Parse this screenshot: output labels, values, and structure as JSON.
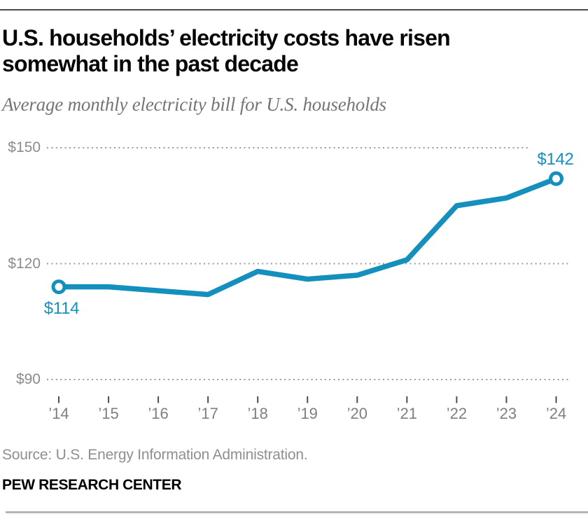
{
  "header": {
    "title_lines": [
      "U.S. households’ electricity costs have risen",
      "somewhat in the past decade"
    ],
    "subtitle": "Average monthly electricity bill for U.S. households"
  },
  "chart_data": {
    "type": "line",
    "title": "Average monthly electricity bill for U.S. households",
    "x_labels": [
      "’14",
      "’15",
      "’16",
      "’17",
      "’18",
      "’19",
      "’20",
      "’21",
      "’22",
      "’23",
      "’24"
    ],
    "values": [
      114,
      114,
      113,
      112,
      118,
      116,
      117,
      121,
      135,
      137,
      142
    ],
    "unit": "$",
    "y_ticks": [
      {
        "label": "$90",
        "value": 90
      },
      {
        "label": "$120",
        "value": 120
      },
      {
        "label": "$150",
        "value": 150
      }
    ],
    "ylim": [
      90,
      150
    ],
    "grid": "horizontal-dotted",
    "legend": "none",
    "first_point_label": "$114",
    "last_point_label": "$142",
    "line_color": "#1590bd",
    "marker": "open-circle-endpoints"
  },
  "footer": {
    "source": "Source: U.S. Energy Information Administration.",
    "branding": "PEW RESEARCH CENTER"
  }
}
